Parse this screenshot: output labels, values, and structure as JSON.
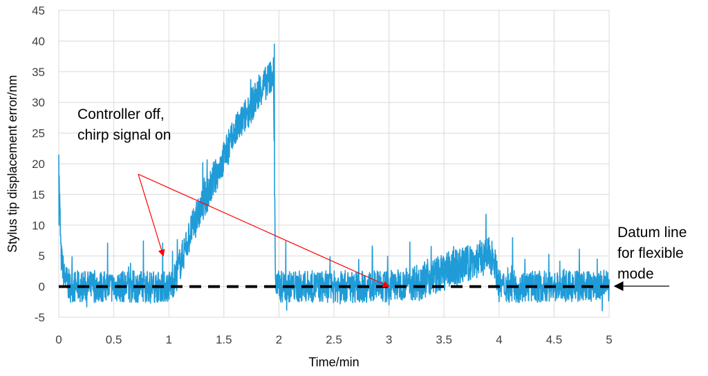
{
  "chart_data": {
    "type": "line",
    "xlabel": "Time/min",
    "ylabel": "Stylus tip displacement error/nm",
    "xlim": [
      0,
      5
    ],
    "ylim": [
      -5,
      45
    ],
    "x_ticks": [
      "0",
      "0.5",
      "1",
      "1.5",
      "2",
      "2.5",
      "3",
      "3.5",
      "4",
      "4.5",
      "5"
    ],
    "y_ticks": [
      "-5",
      "0",
      "5",
      "10",
      "15",
      "20",
      "25",
      "30",
      "35",
      "40",
      "45"
    ],
    "grid": true,
    "colors": {
      "signal": "#1f9bd7",
      "datum": "#000000",
      "annotation_arrow": "#ff0000"
    },
    "series": [
      {
        "x": [
          0,
          0.02,
          0.05,
          0.1,
          0.3,
          0.5,
          0.7,
          0.9,
          1.0,
          1.05,
          1.2,
          1.4,
          1.6,
          1.8,
          1.95,
          1.97,
          2.0,
          2.2,
          2.5,
          3.0,
          3.3,
          3.6,
          3.9,
          3.95,
          4.0,
          4.5,
          5.0
        ],
        "values": [
          20,
          5,
          1.5,
          0,
          0,
          0,
          0,
          0,
          0,
          1,
          9,
          17,
          25,
          31,
          35,
          0,
          0,
          0,
          0,
          0,
          1,
          3,
          5,
          5,
          0,
          0,
          0
        ]
      },
      {
        "x": [
          0,
          5
        ],
        "values": [
          0,
          0
        ]
      }
    ],
    "annotations": [
      {
        "lines": [
          "Controller off,",
          "chirp signal on"
        ],
        "arrow_targets": [
          [
            0.95,
            5
          ],
          [
            3.0,
            0
          ]
        ]
      },
      {
        "lines": [
          "Datum line",
          "for flexible",
          "mode"
        ],
        "arrow_target": [
          5.0,
          0
        ]
      }
    ]
  }
}
